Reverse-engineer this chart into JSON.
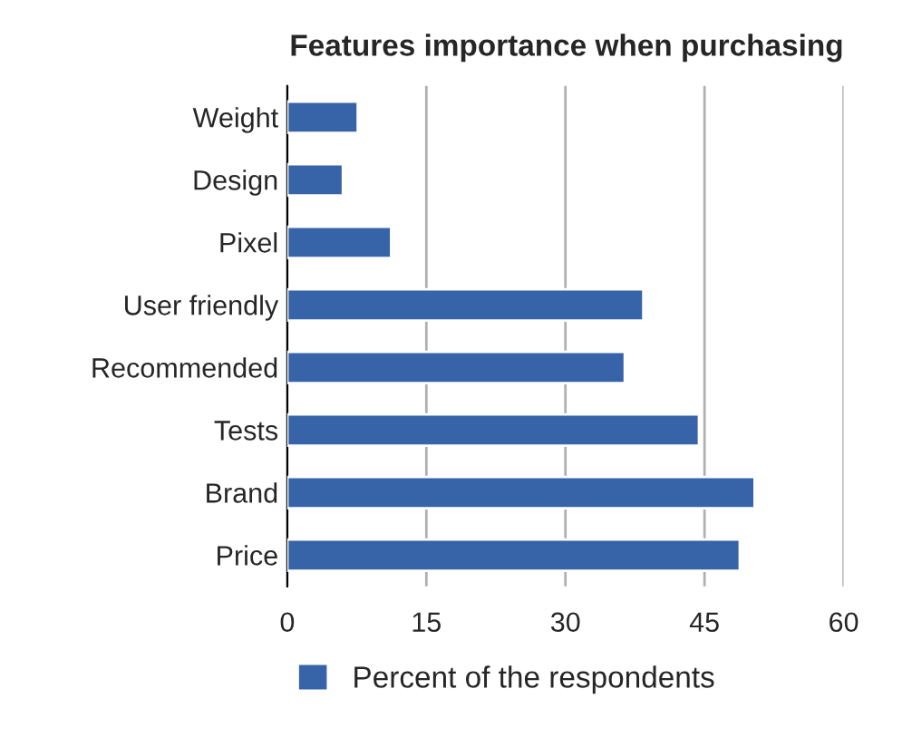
{
  "chart_data": {
    "type": "bar",
    "orientation": "horizontal",
    "title": "Features importance when purchasing",
    "categories": [
      "Weight",
      "Design",
      "Pixel",
      "User friendly",
      "Recommended",
      "Tests",
      "Brand",
      "Price"
    ],
    "series": [
      {
        "name": "Percent of the respondents",
        "color": "#3763a8",
        "values": [
          7.6,
          6.0,
          11.2,
          38.4,
          36.4,
          44.4,
          50.4,
          48.8
        ]
      }
    ],
    "xlim": [
      0,
      60
    ],
    "xticks": [
      0,
      15,
      30,
      45,
      60
    ],
    "grid": "x",
    "legend": "bottom"
  }
}
